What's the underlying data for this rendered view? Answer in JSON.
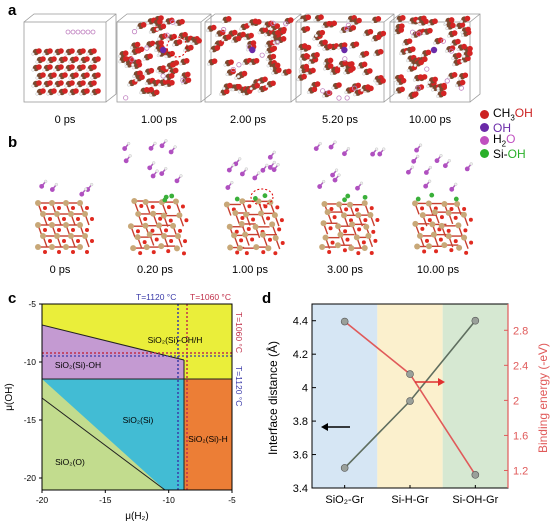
{
  "panel_a": {
    "letter": "a",
    "times": [
      "0 ps",
      "1.00 ps",
      "2.00 ps",
      "5.20 ps",
      "10.00 ps"
    ],
    "legend": [
      {
        "prefix": "CH",
        "sub": "3",
        "rest": "OH",
        "color": "#cc2222",
        "icon": "red-atom-icon"
      },
      {
        "prefix": "",
        "sub": "",
        "rest": "OH",
        "color": "#6a2aa8",
        "icon": "purple-atom-icon"
      },
      {
        "prefix": "H",
        "sub": "2",
        "rest": "O",
        "color": "#c050c0",
        "icon": "magenta-atom-icon"
      },
      {
        "prefix": "Si-",
        "sub": "",
        "rest": "OH",
        "color": "#2ab02a",
        "icon": "green-atom-icon"
      }
    ]
  },
  "panel_b": {
    "letter": "b",
    "times": [
      "0 ps",
      "0.20 ps",
      "1.00 ps",
      "3.00 ps",
      "10.00 ps"
    ]
  },
  "panel_c": {
    "letter": "c",
    "xlabel": "μ(H₂)",
    "ylabel": "μ(OH)",
    "x_ticks": [
      "-20",
      "-15",
      "-10",
      "-5"
    ],
    "y_ticks": [
      "-5",
      "-10",
      "-15",
      "-20"
    ],
    "top_label_blue": "T=1120 °C",
    "top_label_red": "T=1060 °C",
    "right_label_red": "T=1060 °C",
    "right_label_blue": "T=1120 °C",
    "regions": [
      {
        "label": "SiO₂(Si)-OH/H",
        "color": "#eaee3a"
      },
      {
        "label": "SiO₂(Si)-OH",
        "color": "#c49ad2"
      },
      {
        "label": "SiO₂(Si)",
        "color": "#42bcd4"
      },
      {
        "label": "SiO₂(Si)-H",
        "color": "#ec7e36"
      },
      {
        "label": "SiO₂(O)",
        "color": "#c2dc8e"
      }
    ]
  },
  "chart_data": [
    {
      "type": "line",
      "panel": "d",
      "categories": [
        "SiO₂-Gr",
        "Si-H-Gr",
        "Si-OH-Gr"
      ],
      "ylabel": "Interface distance (Å)",
      "ylabel_right": "Binding energy (-eV)",
      "ylim": [
        3.4,
        4.5
      ],
      "ylim_right": [
        1.0,
        3.1
      ],
      "y_ticks": [
        "3.4",
        "3.6",
        "3.8",
        "4",
        "4.2",
        "4.4"
      ],
      "y_ticks_right": [
        "1.2",
        "1.6",
        "2",
        "2.4",
        "2.8"
      ],
      "series": [
        {
          "axis": "left",
          "color": "#5f6e5f",
          "values": [
            3.52,
            3.92,
            4.4
          ]
        },
        {
          "axis": "right",
          "color": "#e05a5a",
          "values": [
            2.9,
            2.3,
            1.15
          ]
        }
      ],
      "band_colors": [
        "#d6e6f4",
        "#fbf0cd",
        "#d6e8d2"
      ]
    }
  ]
}
